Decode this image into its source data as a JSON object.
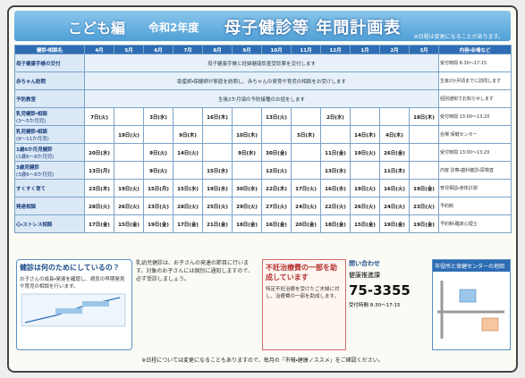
{
  "header": {
    "badge": "こども編",
    "year": "令和2年度",
    "title": "母子健診等 年間計画表",
    "note": "※日程は変更になることがあります。"
  },
  "table": {
    "corner": "健診・相談名",
    "detail_header": "内容・会場など",
    "months": [
      "4月",
      "5月",
      "6月",
      "7月",
      "8月",
      "9月",
      "10月",
      "11月",
      "12月",
      "1月",
      "2月",
      "3月"
    ],
    "rows": [
      {
        "label": "母子健康手帳の交付",
        "note": "母子健康手帳と妊婦健康診査受診票を交付します",
        "detail": "受付時間 8:30～17:15"
      },
      {
        "label": "赤ちゃん訪問",
        "note": "助産師・保健師が家庭を訪問し、赤ちゃんの発育や育児の相談をお受けします",
        "detail": "生後2か月頃までに訪問します"
      },
      {
        "label": "予防教室",
        "note": "生後2か月頃の予防接種のお話をします",
        "detail": "個別通知でお知らせします"
      },
      {
        "label": "乳児健診・相談",
        "sub": "(3～5か月児)",
        "cells": [
          "7日(火)",
          null,
          "3日(水)",
          null,
          "16日(木)",
          null,
          "13日(火)",
          null,
          "2日(水)",
          null,
          null,
          "18日(木)"
        ],
        "detail": "受付時間 13:00～13:20"
      },
      {
        "label": "乳児健診・相談",
        "sub": "(9～11か月児)",
        "cells": [
          null,
          "19日(火)",
          null,
          "9日(木)",
          null,
          "10日(木)",
          null,
          "5日(木)",
          null,
          "14日(木)",
          "4日(木)",
          null
        ],
        "detail": "会場 保健センター"
      },
      {
        "label": "1歳6か月児健診",
        "sub": "(1歳6～8か月児)",
        "cells": [
          "20日(水)",
          null,
          "9日(火)",
          "14日(火)",
          null,
          "9日(水)",
          "30日(金)",
          null,
          "11日(金)",
          "19日(火)",
          "26日(金)",
          null
        ],
        "detail": "受付時間 13:00～13:20"
      },
      {
        "label": "3歳児健診",
        "sub": "(3歳6～8か月児)",
        "cells": [
          "13日(月)",
          null,
          "9日(火)",
          null,
          "15日(水)",
          null,
          "12日(火)",
          null,
          "13日(水)",
          null,
          "11日(木)",
          null
        ],
        "detail": "内容 診察・歯科健診・尿検査"
      },
      {
        "label": "すくすく育て",
        "cells": [
          "23日(木)",
          "19日(火)",
          "15日(月)",
          "15日(水)",
          "19日(水)",
          "30日(水)",
          "22日(木)",
          "17日(火)",
          "16日(水)",
          "19日(火)",
          "16日(火)",
          "19日(金)"
        ],
        "detail": "育児相談・身体計測"
      },
      {
        "label": "発達相談",
        "cells": [
          "28日(火)",
          "26日(火)",
          "23日(火)",
          "28日(火)",
          "25日(火)",
          "29日(火)",
          "27日(火)",
          "24日(火)",
          "22日(火)",
          "26日(火)",
          "24日(火)",
          "23日(火)"
        ],
        "detail": "予約制"
      },
      {
        "label": "心・ストレス相談",
        "cells": [
          "17日(金)",
          "15日(金)",
          "19日(金)",
          "17日(金)",
          "21日(金)",
          "18日(金)",
          "16日(金)",
          "20日(金)",
          "18日(金)",
          "15日(金)",
          "19日(金)",
          "19日(金)"
        ],
        "detail": "予約制・臨床心理士"
      }
    ]
  },
  "purpose": {
    "title": "健診は何のためにしているの？",
    "text": "お子さんの成長・発達を確認し、病気の早期発見や育児の相談を行います。"
  },
  "middle": {
    "text": "乳幼児健診は、お子さんの発達の節目に行います。対象のお子さんには個別に通知しますので、必ず受診しましょう。"
  },
  "infertility": {
    "title": "不妊治療費の一部を助成しています",
    "text": "特定不妊治療を受けたご夫婦に対し、治療費の一部を助成します。"
  },
  "contact": {
    "heading": "問い合わせ",
    "dept": "健康推進課",
    "phone": "75-3355",
    "hours": "受付時間 8:30～17:15"
  },
  "map": {
    "title": "市役所と保健センターの地図"
  },
  "footer": "※日程については変更になることもありますので、毎月の「市報・健康ノススメ」をご確認ください。"
}
